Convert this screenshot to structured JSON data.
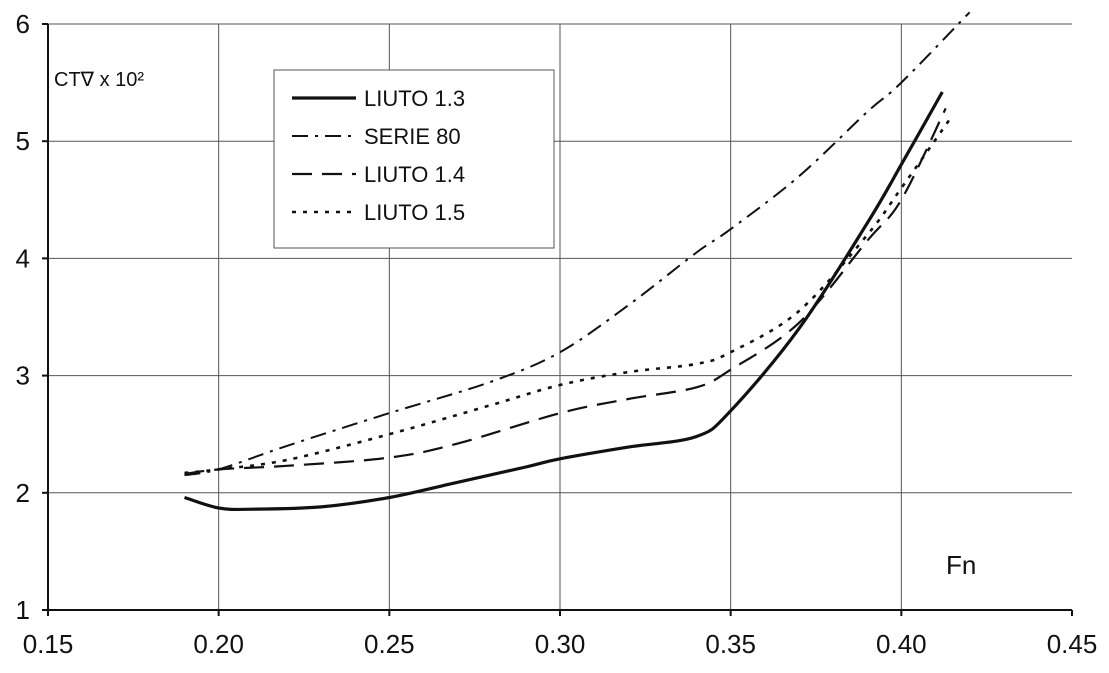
{
  "chart_data": {
    "type": "line",
    "ylabel": "CT∇ x 10²",
    "xlabel": "Fn",
    "xlim": [
      0.15,
      0.45
    ],
    "ylim": [
      1,
      6
    ],
    "x_ticks": [
      "0.15",
      "0.20",
      "0.25",
      "0.30",
      "0.35",
      "0.40",
      "0.45"
    ],
    "y_ticks": [
      "1",
      "2",
      "3",
      "4",
      "5",
      "6"
    ],
    "grid": true,
    "legend_position": "top-left",
    "series": [
      {
        "name": "LIUTO 1.3",
        "style": "solid",
        "x": [
          0.19,
          0.2,
          0.21,
          0.23,
          0.25,
          0.27,
          0.29,
          0.3,
          0.32,
          0.34,
          0.35,
          0.37,
          0.39,
          0.4,
          0.412
        ],
        "y": [
          1.96,
          1.87,
          1.86,
          1.88,
          1.96,
          2.09,
          2.22,
          2.29,
          2.39,
          2.48,
          2.7,
          3.4,
          4.3,
          4.8,
          5.42
        ]
      },
      {
        "name": "SERIE 80",
        "style": "dash-dot",
        "x": [
          0.19,
          0.2,
          0.22,
          0.25,
          0.28,
          0.3,
          0.32,
          0.34,
          0.35,
          0.37,
          0.39,
          0.4,
          0.42
        ],
        "y": [
          2.15,
          2.2,
          2.4,
          2.68,
          2.95,
          3.2,
          3.6,
          4.05,
          4.25,
          4.7,
          5.25,
          5.5,
          6.1
        ]
      },
      {
        "name": "LIUTO 1.4",
        "style": "long-dash",
        "x": [
          0.19,
          0.2,
          0.22,
          0.25,
          0.27,
          0.3,
          0.32,
          0.34,
          0.35,
          0.37,
          0.39,
          0.4,
          0.413
        ],
        "y": [
          2.16,
          2.2,
          2.23,
          2.3,
          2.42,
          2.68,
          2.8,
          2.9,
          3.05,
          3.45,
          4.15,
          4.5,
          5.28
        ]
      },
      {
        "name": "LIUTO 1.5",
        "style": "dotted",
        "x": [
          0.19,
          0.2,
          0.22,
          0.25,
          0.28,
          0.3,
          0.32,
          0.34,
          0.35,
          0.37,
          0.39,
          0.4,
          0.415
        ],
        "y": [
          2.17,
          2.2,
          2.28,
          2.5,
          2.75,
          2.92,
          3.03,
          3.1,
          3.2,
          3.55,
          4.2,
          4.6,
          5.22
        ]
      }
    ]
  }
}
